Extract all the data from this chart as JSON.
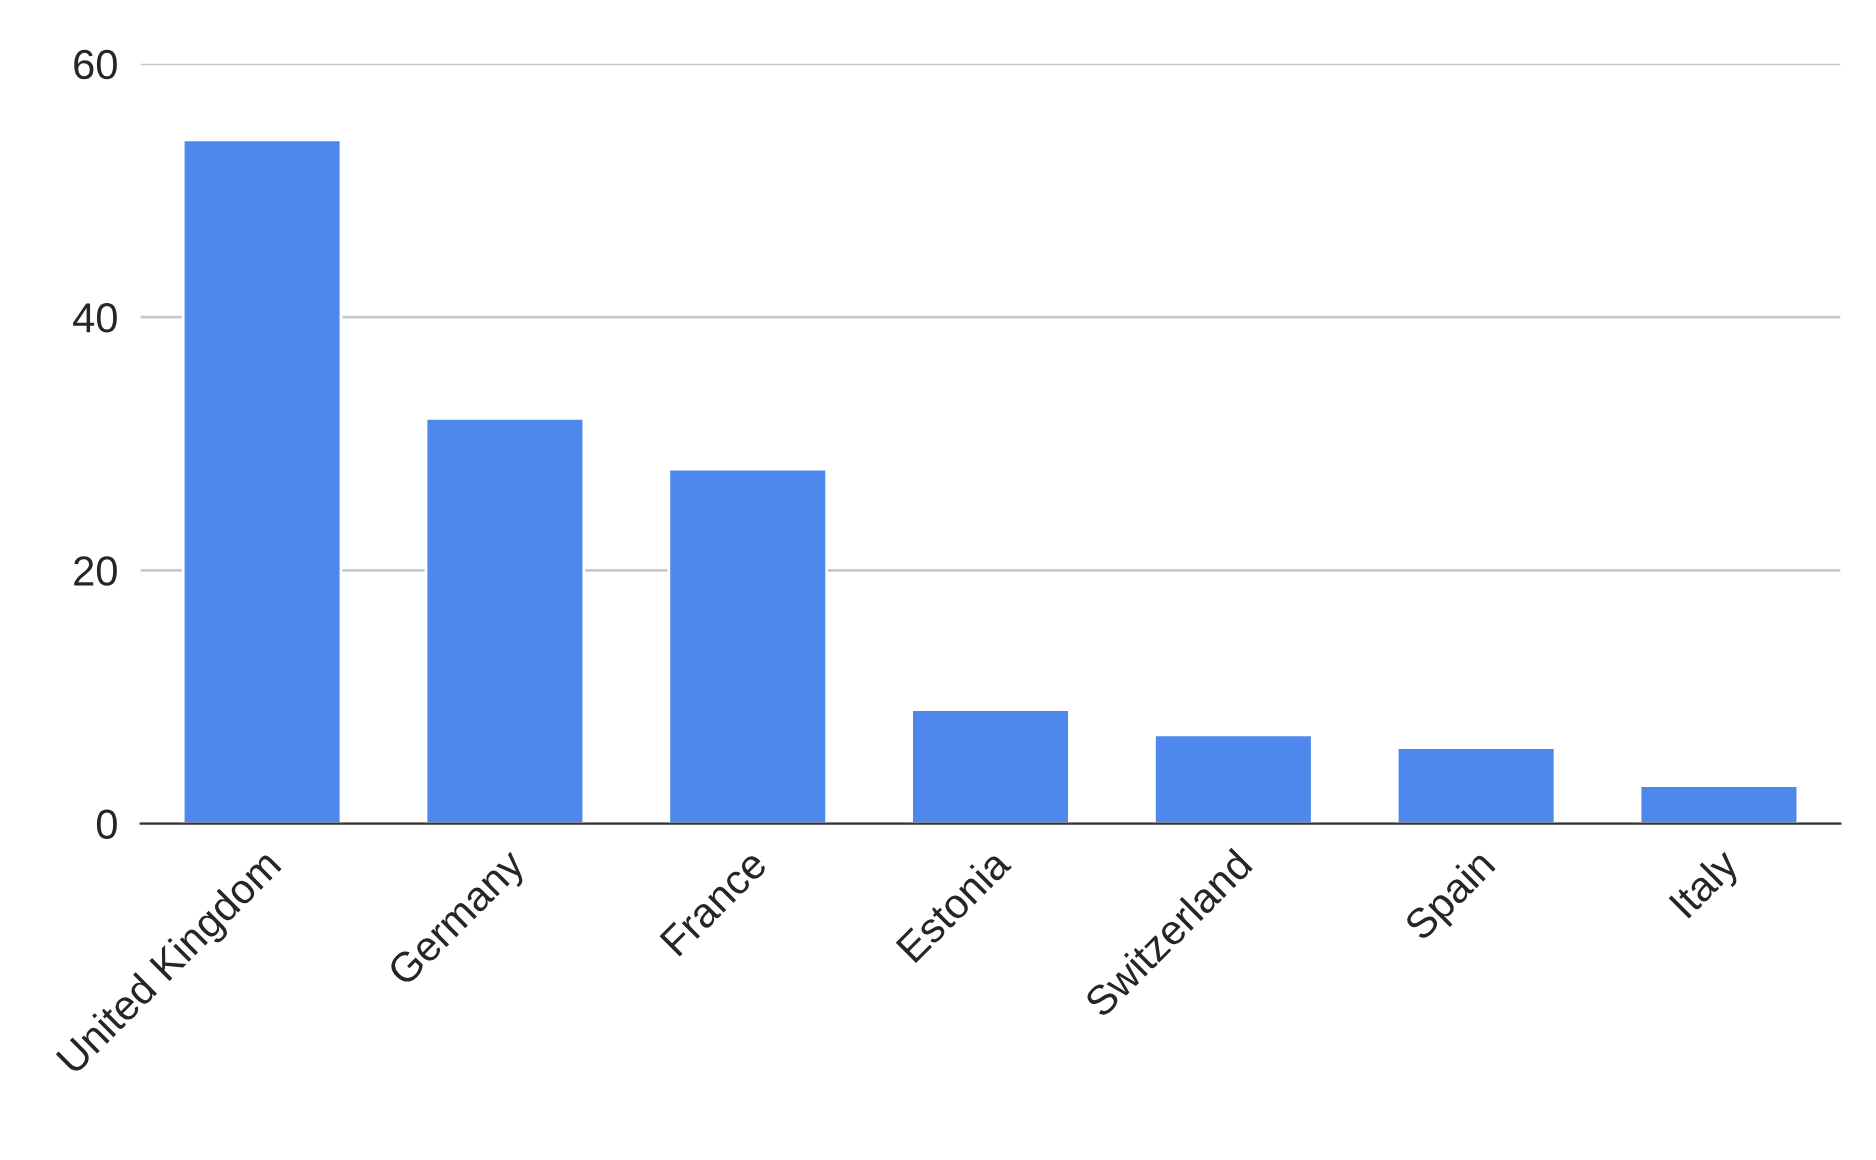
{
  "chart_data": {
    "type": "bar",
    "categories": [
      "United Kingdom",
      "Germany",
      "France",
      "Estonia",
      "Switzerland",
      "Spain",
      "Italy"
    ],
    "values": [
      54,
      32,
      28,
      9,
      7,
      6,
      3
    ],
    "color": "#4f88ec",
    "ylim": [
      0,
      60
    ],
    "yticks": [
      0,
      20,
      40,
      60
    ],
    "grid": "y",
    "legend": false
  }
}
